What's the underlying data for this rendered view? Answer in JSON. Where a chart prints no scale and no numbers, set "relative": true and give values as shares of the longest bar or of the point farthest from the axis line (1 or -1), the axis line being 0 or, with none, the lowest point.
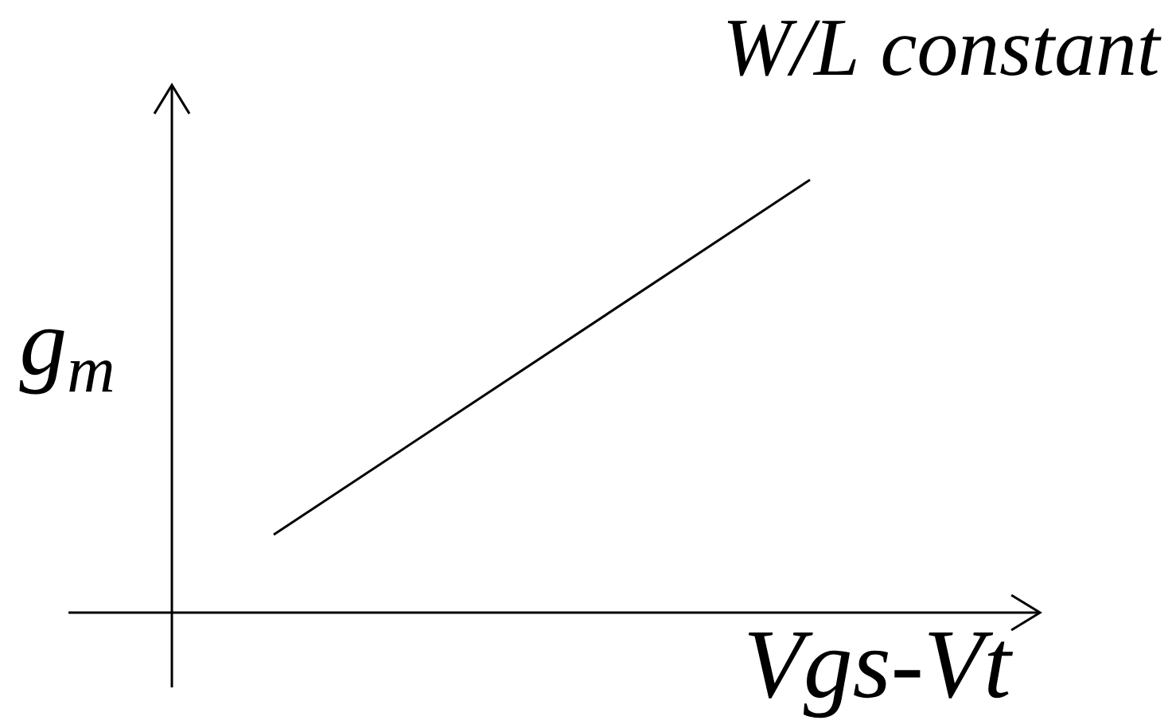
{
  "chart_data": {
    "type": "line",
    "xlabel": "Vgs-Vt",
    "ylabel": "g$_{m}$",
    "annotations": [
      "W/L constant"
    ],
    "categories": [
      null,
      null
    ],
    "relative": true,
    "marker": "none",
    "line_style": "solid",
    "series": [
      {
        "color": "#000000",
        "values": [
          0.18,
          1
        ]
      }
    ]
  }
}
